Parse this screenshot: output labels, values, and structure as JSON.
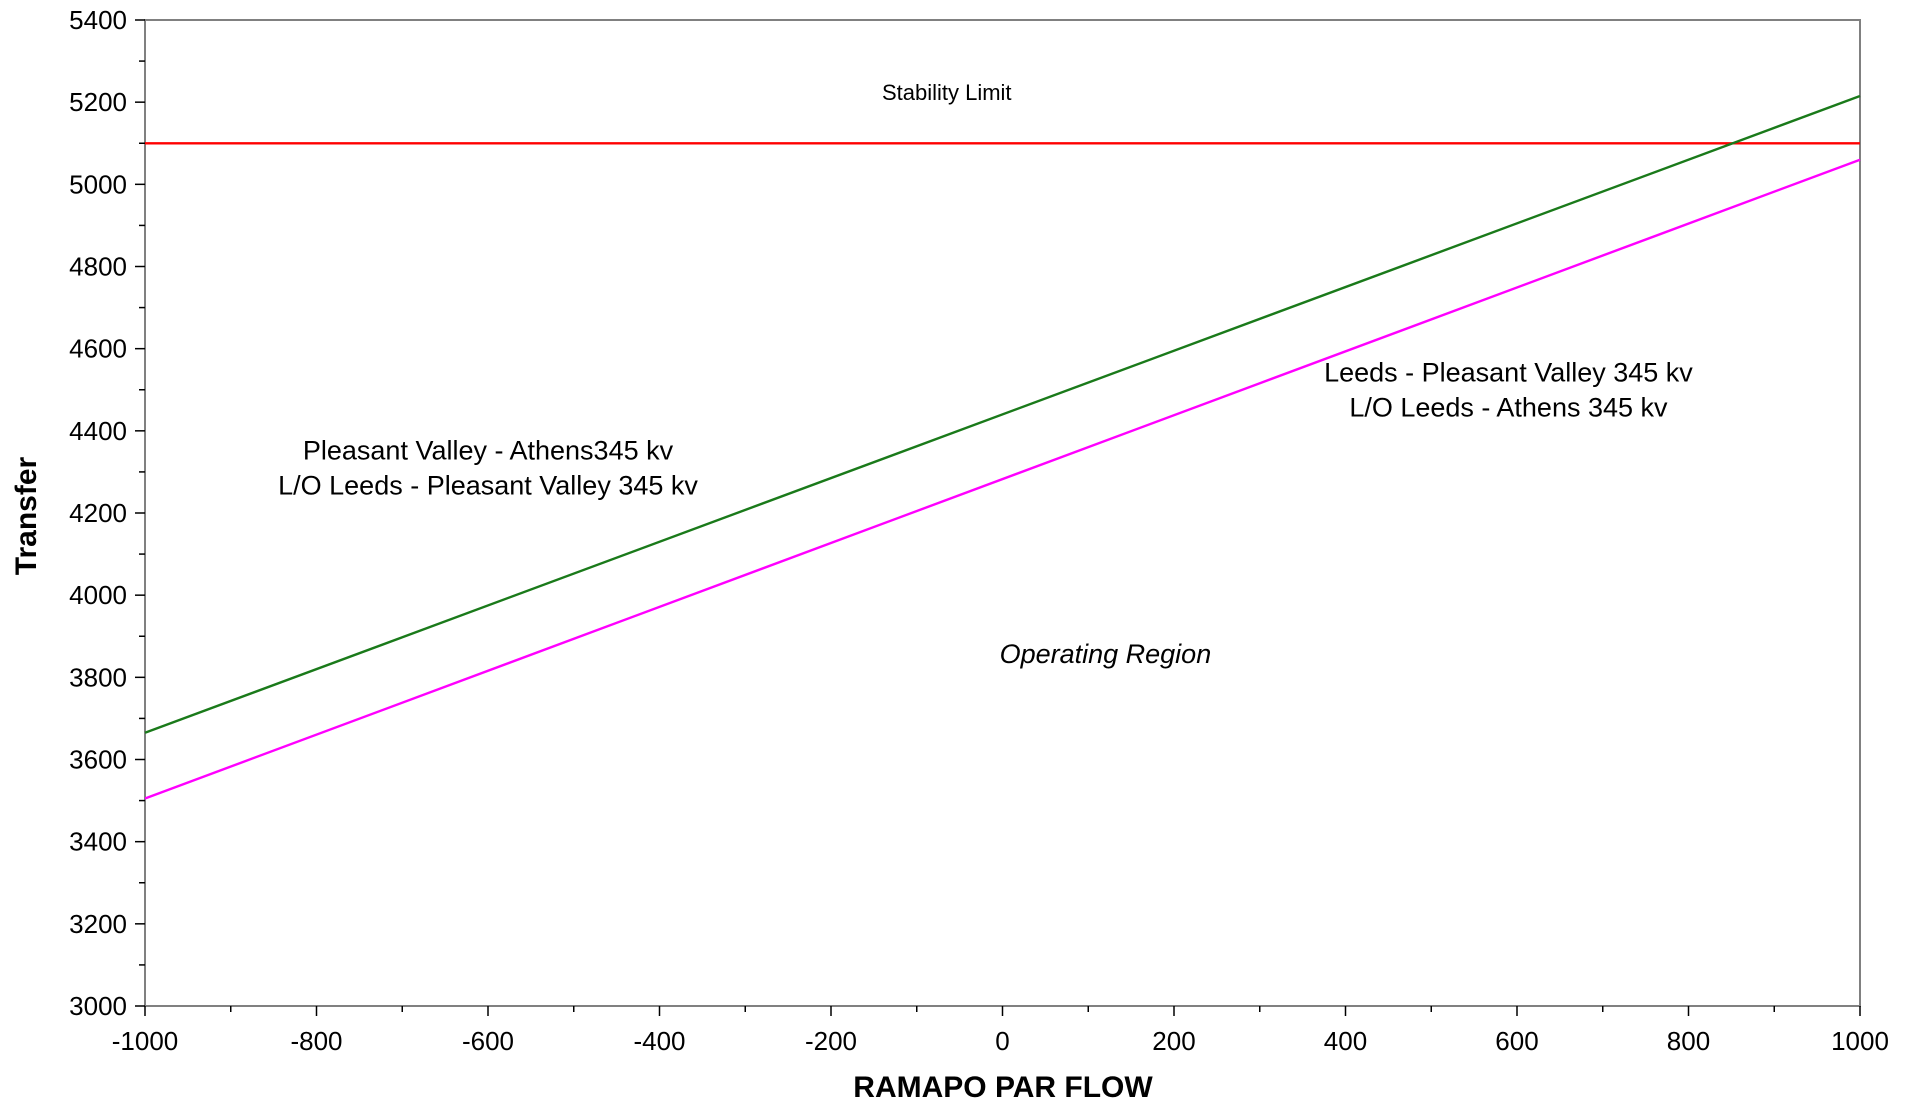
{
  "chart_data": {
    "type": "line",
    "title": "",
    "xlabel": "RAMAPO PAR FLOW",
    "ylabel": "Transfer",
    "xlim": [
      -1000,
      1000
    ],
    "ylim": [
      3000,
      5400
    ],
    "x_ticks": [
      -1000,
      -800,
      -600,
      -400,
      -200,
      0,
      200,
      400,
      600,
      800,
      1000
    ],
    "y_ticks": [
      3000,
      3200,
      3400,
      3600,
      3800,
      4000,
      4200,
      4400,
      4600,
      4800,
      5000,
      5200,
      5400
    ],
    "x_minor_step": 100,
    "y_minor_step": 100,
    "grid": false,
    "legend": "none",
    "series": [
      {
        "color": "#ff0000",
        "x": [
          -1000,
          1000
        ],
        "y": [
          5100,
          5100
        ]
      },
      {
        "color": "#1a7a1a",
        "x": [
          -1000,
          1000
        ],
        "y": [
          3665,
          5215
        ]
      },
      {
        "color": "#ff00ff",
        "x": [
          -1000,
          1000
        ],
        "y": [
          3505,
          5060
        ]
      }
    ],
    "annotations": [
      {
        "id": "stability",
        "text": "Stability Limit",
        "x": -65,
        "y": 5205,
        "style": "small"
      },
      {
        "id": "pv-athens-1",
        "text": "Pleasant Valley - Athens345 kv",
        "x": -600,
        "y": 4330,
        "style": "normal"
      },
      {
        "id": "pv-athens-2",
        "text": "L/O Leeds - Pleasant Valley 345 kv",
        "x": -600,
        "y": 4245,
        "style": "normal"
      },
      {
        "id": "leeds-pv-1",
        "text": "Leeds - Pleasant Valley 345 kv",
        "x": 590,
        "y": 4520,
        "style": "normal"
      },
      {
        "id": "leeds-pv-2",
        "text": "L/O Leeds - Athens 345 kv",
        "x": 590,
        "y": 4435,
        "style": "normal"
      },
      {
        "id": "operating",
        "text": "Operating Region",
        "x": 120,
        "y": 3835,
        "style": "italic"
      }
    ],
    "axis_color": "#808080"
  }
}
